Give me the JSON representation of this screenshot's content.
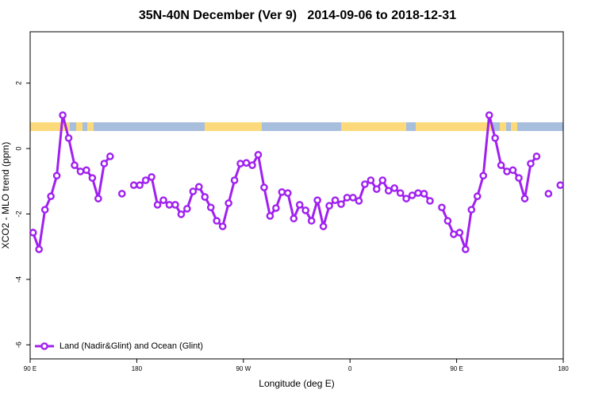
{
  "chart_data": {
    "type": "line",
    "title": "35N-40N December (Ver 9)   2014-09-06 to 2018-12-31",
    "x_label": "Longitude (deg E)",
    "y_label": "XCO2 - MLO trend (ppm)",
    "x": [
      92.5,
      97.5,
      102.5,
      107.5,
      112.5,
      117.5,
      122.5,
      127.5,
      132.5,
      137.5,
      142.5,
      147.5,
      152.5,
      157.5,
      162.5,
      167.5,
      172.5,
      177.5,
      182.5,
      187.5,
      192.5,
      197.5,
      202.5,
      207.5,
      212.5,
      217.5,
      222.5,
      227.5,
      232.5,
      237.5,
      242.5,
      247.5,
      252.5,
      257.5,
      262.5,
      267.5,
      272.5,
      277.5,
      282.5,
      287.5,
      292.5,
      297.5,
      302.5,
      307.5,
      312.5,
      317.5,
      322.5,
      327.5,
      332.5,
      337.5,
      342.5,
      347.5,
      352.5,
      357.5,
      362.5,
      367.5,
      372.5,
      377.5,
      382.5,
      387.5,
      392.5,
      397.5,
      402.5,
      407.5,
      412.5,
      417.5,
      422.5,
      427.5,
      432.5,
      437.5,
      442.5,
      447.5,
      452.5,
      457.5,
      462.5,
      467.5,
      472.5,
      477.5,
      482.5,
      487.5,
      492.5,
      497.5,
      502.5,
      507.5,
      512.5,
      517.5,
      522.5,
      527.5,
      532.5,
      537.5
    ],
    "series": [
      {
        "name": "Land (Nadir&Glint) and Ocean (Glint)",
        "color": "#a020f0",
        "values": [
          -2.57,
          -3.08,
          -1.87,
          -1.46,
          -0.83,
          1.02,
          0.32,
          -0.51,
          -0.7,
          -0.66,
          -0.9,
          -1.53,
          -0.46,
          -0.24,
          null,
          -1.38,
          null,
          -1.12,
          -1.12,
          -0.97,
          -0.87,
          -1.72,
          -1.58,
          -1.72,
          -1.72,
          -2.01,
          -1.84,
          -1.31,
          -1.17,
          -1.48,
          -1.8,
          -2.21,
          -2.38,
          -1.67,
          -0.97,
          -0.46,
          -0.44,
          -0.51,
          -0.19,
          -1.19,
          -2.06,
          -1.82,
          -1.33,
          -1.36,
          -2.14,
          -1.72,
          -1.89,
          -2.21,
          -1.58,
          -2.38,
          -1.75,
          -1.58,
          -1.7,
          -1.5,
          -1.5,
          -1.6,
          -1.09,
          -0.97,
          -1.24,
          -0.97,
          -1.29,
          -1.21,
          -1.36,
          -1.53,
          -1.43,
          -1.36,
          -1.38,
          -1.6,
          null,
          -1.8,
          -2.21,
          -2.62,
          -2.57,
          -3.08,
          -1.87,
          -1.46,
          -0.83,
          1.02,
          0.32,
          -0.51,
          -0.7,
          -0.66,
          -0.9,
          -1.53,
          -0.46,
          -0.24,
          null,
          -1.38,
          null,
          -1.12
        ]
      }
    ],
    "xlim": [
      90,
      540
    ],
    "xticks": [
      {
        "value": 90,
        "label": "90 E"
      },
      180,
      {
        "value": 270,
        "label": "90 W"
      },
      {
        "value": 360,
        "label": "0"
      },
      {
        "value": 450,
        "label": "90 E"
      },
      {
        "value": 540,
        "label": "180"
      }
    ],
    "ylim": [
      -6.43,
      3.57
    ],
    "yticks": [
      -6,
      -4,
      -2,
      0,
      2
    ],
    "legend": "bottom-left"
  }
}
